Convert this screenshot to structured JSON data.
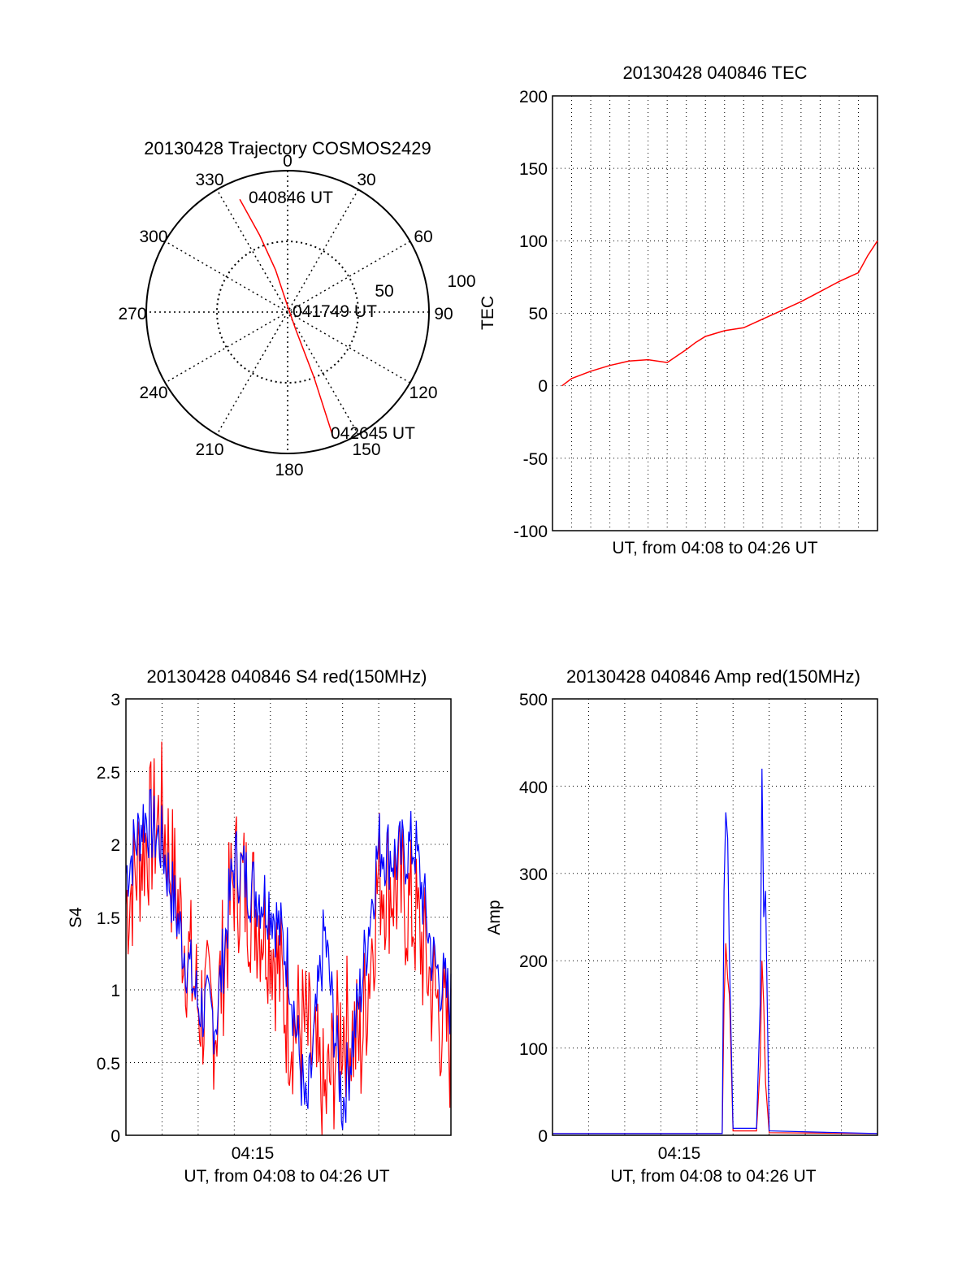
{
  "chart_data": [
    {
      "type": "polar",
      "title": "20130428 Trajectory COSMOS2429",
      "azimuth_labels": [
        "0",
        "30",
        "60",
        "90",
        "120",
        "150",
        "180",
        "210",
        "240",
        "270",
        "300",
        "330"
      ],
      "radial_labels": [
        "50",
        "100"
      ],
      "annotations": [
        "040846 UT",
        "041749 UT",
        "042645 UT"
      ],
      "trajectory": [
        {
          "az": 337,
          "zen": 78
        },
        {
          "az": 340,
          "zen": 52
        },
        {
          "az": 344,
          "zen": 28
        },
        {
          "az": 355,
          "zen": 5
        },
        {
          "az": 155,
          "zen": 12
        },
        {
          "az": 158,
          "zen": 45
        },
        {
          "az": 160,
          "zen": 85
        }
      ],
      "colors": {
        "trajectory": "#ff0000"
      }
    },
    {
      "type": "line",
      "title": "20130428 040846 TEC",
      "xlabel": "UT, from 04:08 to 04:26 UT",
      "ylabel": "TEC",
      "ylim": [
        -100,
        200
      ],
      "yticks": [
        "200",
        "150",
        "100",
        "50",
        "0",
        "-50",
        "-100"
      ],
      "series": [
        {
          "color": "#ff0000",
          "x": [
            0.5,
            1,
            2,
            3,
            4,
            5,
            6,
            7,
            7.5,
            8,
            9,
            10,
            11,
            12,
            13,
            14,
            15,
            16,
            16.5,
            17
          ],
          "y": [
            0,
            5,
            10,
            14,
            17,
            18,
            16,
            25,
            30,
            34,
            38,
            40,
            46,
            52,
            58,
            65,
            72,
            78,
            90,
            100
          ]
        }
      ]
    },
    {
      "type": "line",
      "title": "20130428 040846 S4 red(150MHz)",
      "xlabel": "UT, from 04:08 to 04:26 UT",
      "ylabel": "S4",
      "ylim": [
        0,
        3
      ],
      "yticks": [
        "3",
        "2.5",
        "2",
        "1.5",
        "1",
        "0.5",
        "0"
      ],
      "xticks": [
        "04:15"
      ],
      "series": [
        {
          "color": "#ff0000",
          "x": [
            0,
            1,
            2,
            3,
            4,
            5,
            6,
            7,
            8,
            9,
            10,
            11,
            12,
            13,
            14,
            15,
            16,
            17,
            18
          ],
          "y": [
            1.6,
            2.0,
            2.2,
            1.5,
            0.9,
            0.8,
            1.8,
            1.6,
            1.4,
            0.8,
            0.7,
            0.2,
            0.8,
            0.6,
            1.8,
            1.7,
            1.5,
            1.0,
            0.6
          ]
        },
        {
          "color": "#0000ff",
          "x": [
            0,
            1,
            2,
            3,
            4,
            5,
            6,
            7,
            8,
            9,
            10,
            11,
            12,
            13,
            14,
            15,
            16,
            17,
            18
          ],
          "y": [
            1.8,
            2.2,
            2.0,
            1.4,
            0.9,
            0.8,
            1.9,
            1.7,
            1.6,
            1.2,
            0.1,
            1.4,
            0.2,
            1.0,
            2.0,
            1.9,
            2.0,
            1.2,
            0.9
          ]
        }
      ]
    },
    {
      "type": "line",
      "title": "20130428 040846 Amp red(150MHz)",
      "xlabel": "UT, from 04:08 to 04:26 UT",
      "ylabel": "Amp",
      "ylim": [
        0,
        500
      ],
      "yticks": [
        "500",
        "400",
        "300",
        "200",
        "100",
        "0"
      ],
      "xticks": [
        "04:15"
      ],
      "series": [
        {
          "color": "#ff0000",
          "x": [
            0,
            9.4,
            9.5,
            9.6,
            9.7,
            9.8,
            10,
            11.3,
            11.5,
            11.6,
            11.7,
            11.8,
            12,
            18
          ],
          "y": [
            2,
            2,
            150,
            220,
            180,
            160,
            5,
            5,
            80,
            200,
            150,
            60,
            3,
            2
          ]
        },
        {
          "color": "#0000ff",
          "x": [
            0,
            9.4,
            9.5,
            9.6,
            9.7,
            9.8,
            10,
            11.3,
            11.5,
            11.6,
            11.7,
            11.8,
            12,
            18
          ],
          "y": [
            2,
            2,
            280,
            370,
            340,
            200,
            8,
            8,
            150,
            420,
            250,
            280,
            5,
            2
          ]
        }
      ]
    }
  ]
}
